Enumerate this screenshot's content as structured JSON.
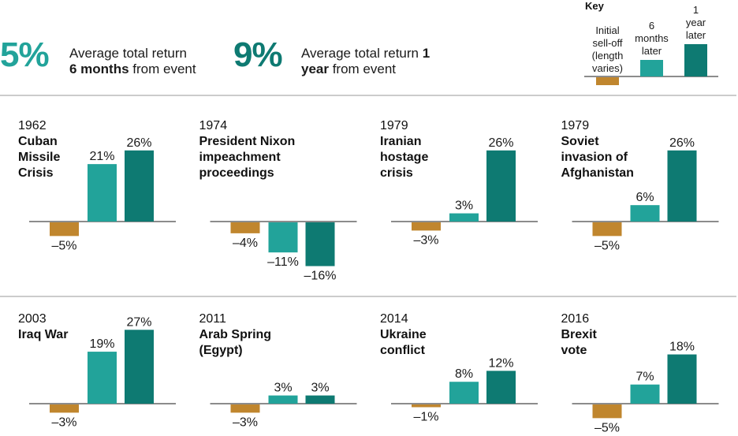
{
  "summary": [
    {
      "value": "5%",
      "line1": "Average total return",
      "line2_bold": "6 months",
      "line2_rest": " from event",
      "color": "#22A39A"
    },
    {
      "value": "9%",
      "line1_pre": "Average total return ",
      "line1_bold": "1",
      "line2_bold": "year",
      "line2_rest": " from event",
      "color": "#0E7A72"
    }
  ],
  "key": {
    "title": "Key",
    "labels": [
      "Initial\nsell-off\n(length\nvaries)",
      "6\nmonths\nlater",
      "1\nyear\nlater"
    ],
    "values": [
      -1,
      2,
      4
    ]
  },
  "chart_data": {
    "type": "bar",
    "title": "",
    "series_names": [
      "Initial sell-off (length varies)",
      "6 months later",
      "1 year later"
    ],
    "colors": [
      "#C0862E",
      "#22A39A",
      "#0E7A72"
    ],
    "unit": "%",
    "events": [
      {
        "year": "1962",
        "name": "Cuban\nMissile\nCrisis",
        "values": [
          -5,
          21,
          26
        ],
        "labels": [
          "–5%",
          "21%",
          "26%"
        ]
      },
      {
        "year": "1974",
        "name": "President Nixon\nimpeachment\nproceedings",
        "values": [
          -4,
          -11,
          -16
        ],
        "labels": [
          "–4%",
          "–11%",
          "–16%"
        ]
      },
      {
        "year": "1979",
        "name": "Iranian\nhostage\ncrisis",
        "values": [
          -3,
          3,
          26
        ],
        "labels": [
          "–3%",
          "3%",
          "26%"
        ]
      },
      {
        "year": "1979",
        "name": "Soviet\ninvasion of\nAfghanistan",
        "values": [
          -5,
          6,
          26
        ],
        "labels": [
          "–5%",
          "6%",
          "26%"
        ]
      },
      {
        "year": "2003",
        "name": "Iraq War",
        "values": [
          -3,
          19,
          27
        ],
        "labels": [
          "–3%",
          "19%",
          "27%"
        ]
      },
      {
        "year": "2011",
        "name": "Arab Spring\n(Egypt)",
        "values": [
          -3,
          3,
          3
        ],
        "labels": [
          "–3%",
          "3%",
          "3%"
        ]
      },
      {
        "year": "2014",
        "name": "Ukraine\nconflict",
        "values": [
          -1,
          8,
          12
        ],
        "labels": [
          "–1%",
          "8%",
          "12%"
        ]
      },
      {
        "year": "2016",
        "name": "Brexit\nvote",
        "values": [
          -5,
          7,
          18
        ],
        "labels": [
          "–5%",
          "7%",
          "18%"
        ]
      }
    ]
  }
}
